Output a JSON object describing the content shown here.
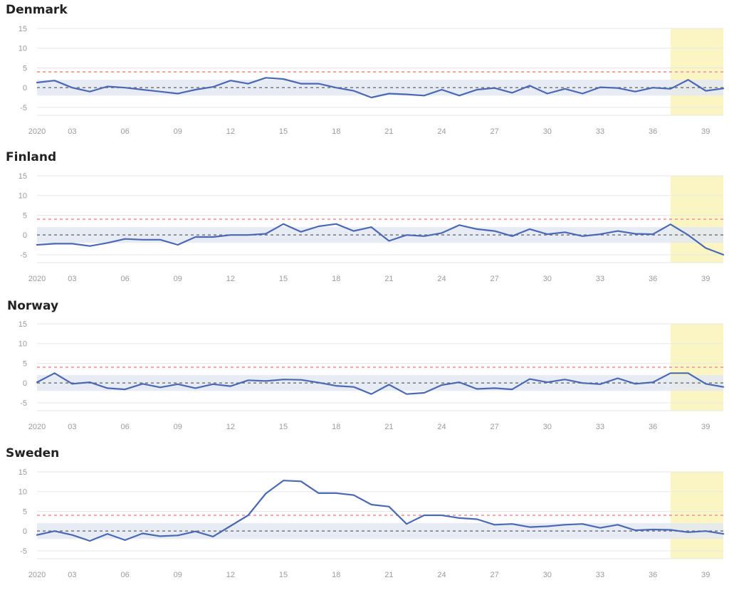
{
  "colors": {
    "series": "#4a68b3",
    "threshold": "#f4a6a6",
    "baseline": "#777777",
    "band": "#e3e8f1",
    "highlight": "#fbf5c4",
    "grid": "#e6e6e6"
  },
  "chart_data": [
    {
      "type": "line",
      "title": "Denmark",
      "x": [
        1,
        2,
        3,
        4,
        5,
        6,
        7,
        8,
        9,
        10,
        11,
        12,
        13,
        14,
        15,
        16,
        17,
        18,
        19,
        20,
        21,
        22,
        23,
        24,
        25,
        26,
        27,
        28,
        29,
        30,
        31,
        32,
        33,
        34,
        35,
        36,
        37,
        38,
        39,
        40
      ],
      "x_tick_labels": [
        "2020",
        "03",
        "06",
        "09",
        "12",
        "15",
        "18",
        "21",
        "24",
        "27",
        "30",
        "33",
        "36",
        "39"
      ],
      "y_ticks": [
        15,
        10,
        5,
        0,
        -5
      ],
      "ylim": [
        -7,
        15
      ],
      "threshold_line": 4,
      "baseline_band": [
        -2,
        2
      ],
      "highlight_from_week": 37,
      "series": [
        {
          "values": [
            1.3,
            1.8,
            0,
            -1,
            0.3,
            0,
            -0.5,
            -1,
            -1.5,
            -0.5,
            0.2,
            1.8,
            1,
            2.5,
            2.2,
            1,
            1,
            0,
            -0.8,
            -2.5,
            -1.5,
            -1.7,
            -2,
            -0.5,
            -2,
            -0.5,
            -0.1,
            -1.3,
            0.5,
            -1.5,
            -0.3,
            -1.5,
            0.1,
            -0.1,
            -1,
            0,
            -0.3,
            2,
            -0.8,
            -0.2
          ]
        }
      ]
    },
    {
      "type": "line",
      "title": "Finland",
      "x": [
        1,
        2,
        3,
        4,
        5,
        6,
        7,
        8,
        9,
        10,
        11,
        12,
        13,
        14,
        15,
        16,
        17,
        18,
        19,
        20,
        21,
        22,
        23,
        24,
        25,
        26,
        27,
        28,
        29,
        30,
        31,
        32,
        33,
        34,
        35,
        36,
        37,
        38,
        39,
        40
      ],
      "x_tick_labels": [
        "2020",
        "03",
        "06",
        "09",
        "12",
        "15",
        "18",
        "21",
        "24",
        "27",
        "30",
        "33",
        "36",
        "39"
      ],
      "y_ticks": [
        15,
        10,
        5,
        0,
        -5
      ],
      "ylim": [
        -7,
        15
      ],
      "threshold_line": 4,
      "baseline_band": [
        -2,
        2
      ],
      "highlight_from_week": 37,
      "series": [
        {
          "values": [
            -2.5,
            -2.2,
            -2.2,
            -2.8,
            -2,
            -1,
            -1.2,
            -1.2,
            -2.5,
            -0.5,
            -0.5,
            0,
            0,
            0.3,
            2.8,
            0.8,
            2.2,
            2.8,
            1,
            2,
            -1.5,
            0,
            -0.3,
            0.5,
            2.5,
            1.5,
            1,
            -0.3,
            1.5,
            0.2,
            0.7,
            -0.3,
            0.2,
            1,
            0.3,
            0.2,
            2.7,
            0,
            -3.3,
            -5
          ]
        }
      ]
    },
    {
      "type": "line",
      "title": "Norway",
      "x": [
        1,
        2,
        3,
        4,
        5,
        6,
        7,
        8,
        9,
        10,
        11,
        12,
        13,
        14,
        15,
        16,
        17,
        18,
        19,
        20,
        21,
        22,
        23,
        24,
        25,
        26,
        27,
        28,
        29,
        30,
        31,
        32,
        33,
        34,
        35,
        36,
        37,
        38,
        39,
        40
      ],
      "x_tick_labels": [
        "2020",
        "03",
        "06",
        "09",
        "12",
        "15",
        "18",
        "21",
        "24",
        "27",
        "30",
        "33",
        "36",
        "39"
      ],
      "y_ticks": [
        15,
        10,
        5,
        0,
        -5
      ],
      "ylim": [
        -7,
        15
      ],
      "threshold_line": 4,
      "baseline_band": [
        -2,
        2
      ],
      "highlight_from_week": 37,
      "series": [
        {
          "values": [
            0.2,
            2.5,
            -0.2,
            0.2,
            -1.3,
            -1.6,
            -0.2,
            -1.1,
            -0.3,
            -1.3,
            -0.3,
            -0.8,
            0.7,
            0.5,
            0.9,
            0.8,
            0.1,
            -0.7,
            -1,
            -2.8,
            -0.4,
            -2.8,
            -2.5,
            -0.5,
            0.2,
            -1.5,
            -1.3,
            -1.6,
            1,
            0.2,
            0.9,
            0,
            -0.3,
            1.2,
            -0.2,
            0.2,
            2.5,
            2.5,
            -0.2,
            -1
          ]
        }
      ]
    },
    {
      "type": "line",
      "title": "Sweden",
      "x": [
        1,
        2,
        3,
        4,
        5,
        6,
        7,
        8,
        9,
        10,
        11,
        12,
        13,
        14,
        15,
        16,
        17,
        18,
        19,
        20,
        21,
        22,
        23,
        24,
        25,
        26,
        27,
        28,
        29,
        30,
        31,
        32,
        33,
        34,
        35,
        36,
        37,
        38,
        39,
        40
      ],
      "x_tick_labels": [
        "2020",
        "03",
        "06",
        "09",
        "12",
        "15",
        "18",
        "21",
        "24",
        "27",
        "30",
        "33",
        "36",
        "39"
      ],
      "y_ticks": [
        15,
        10,
        5,
        0,
        -5
      ],
      "ylim": [
        -7,
        15
      ],
      "threshold_line": 4,
      "baseline_band": [
        -2,
        2
      ],
      "highlight_from_week": 37,
      "series": [
        {
          "values": [
            -1,
            0,
            -1,
            -2.5,
            -0.7,
            -2.3,
            -0.6,
            -1.3,
            -1.1,
            -0.1,
            -1.4,
            1.3,
            4,
            9.5,
            12.8,
            12.6,
            9.6,
            9.6,
            9.1,
            6.7,
            6.2,
            1.8,
            4,
            4,
            3.3,
            3,
            1.6,
            1.8,
            1,
            1.2,
            1.6,
            1.8,
            0.8,
            1.6,
            0.2,
            0.4,
            0.3,
            -0.3,
            0,
            -0.7
          ]
        }
      ]
    }
  ]
}
